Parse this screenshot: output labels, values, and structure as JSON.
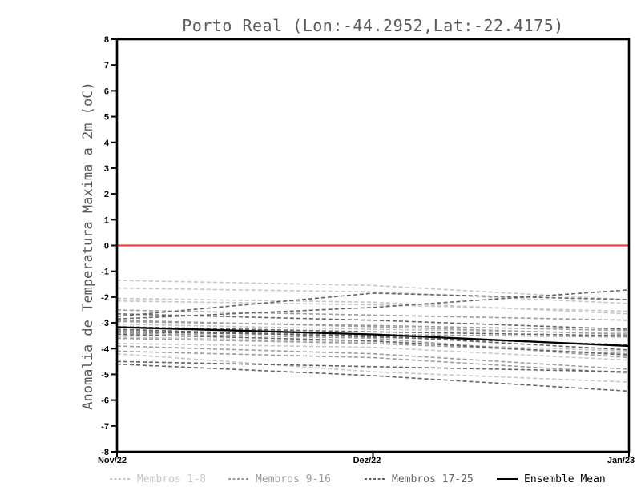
{
  "chart_data": {
    "type": "line",
    "title": "Porto Real (Lon:-44.2952,Lat:-22.4175)",
    "ylabel": "Anomalia de Temperatura Maxima a 2m (oC)",
    "xlabel": "",
    "x": [
      "Nov/22",
      "Dez/22",
      "Jan/23"
    ],
    "ylim": [
      -8,
      8
    ],
    "yticks": [
      8,
      7,
      6,
      5,
      4,
      3,
      2,
      1,
      0,
      -1,
      -2,
      -3,
      -4,
      -5,
      -6,
      -7,
      -8
    ],
    "grid": false,
    "legend_position": "bottom",
    "axis_color": "#000000",
    "reference_line": {
      "y": 0,
      "color": "#fa3c3c",
      "style": "solid"
    },
    "series_groups": [
      {
        "name": "Membros 1-8",
        "role": "members",
        "color": "#c6c6c6",
        "style": "dashed",
        "members": [
          [
            -1.35,
            -1.55,
            -2.1
          ],
          [
            -1.65,
            -1.8,
            -2.25
          ],
          [
            -2.05,
            -2.2,
            -2.65
          ],
          [
            -2.15,
            -2.3,
            -2.55
          ],
          [
            -3.05,
            -3.25,
            -3.4
          ],
          [
            -3.55,
            -3.75,
            -4.1
          ],
          [
            -4.2,
            -4.9,
            -5.3
          ],
          [
            -3.8,
            -3.95,
            -4.45
          ]
        ]
      },
      {
        "name": "Membros 9-16",
        "role": "members",
        "color": "#9c9c9c",
        "style": "dashed",
        "members": [
          [
            -2.5,
            -2.7,
            -2.9
          ],
          [
            -2.9,
            -3.15,
            -3.45
          ],
          [
            -3.3,
            -3.45,
            -3.55
          ],
          [
            -3.6,
            -3.8,
            -4.2
          ],
          [
            -3.9,
            -4.2,
            -4.8
          ],
          [
            -3.4,
            -3.6,
            -4.35
          ],
          [
            -2.95,
            -3.1,
            -3.3
          ],
          [
            -4.1,
            -4.35,
            -4.95
          ]
        ]
      },
      {
        "name": "Membros 17-25",
        "role": "members",
        "color": "#646464",
        "style": "dashed",
        "members": [
          [
            -2.75,
            -1.85,
            -2.1
          ],
          [
            -2.85,
            -2.4,
            -1.72
          ],
          [
            -3.15,
            -3.35,
            -3.5
          ],
          [
            -3.35,
            -3.5,
            -4.05
          ],
          [
            -3.45,
            -3.7,
            -4.25
          ],
          [
            -4.5,
            -4.7,
            -4.9
          ],
          [
            -4.6,
            -5.05,
            -5.65
          ],
          [
            -2.65,
            -2.9,
            -3.25
          ],
          [
            -3.25,
            -3.55,
            -3.85
          ]
        ]
      },
      {
        "name": "Ensemble Mean",
        "role": "mean",
        "color": "#000000",
        "style": "solid",
        "members": [
          [
            -3.17,
            -3.45,
            -3.9
          ]
        ]
      }
    ]
  }
}
